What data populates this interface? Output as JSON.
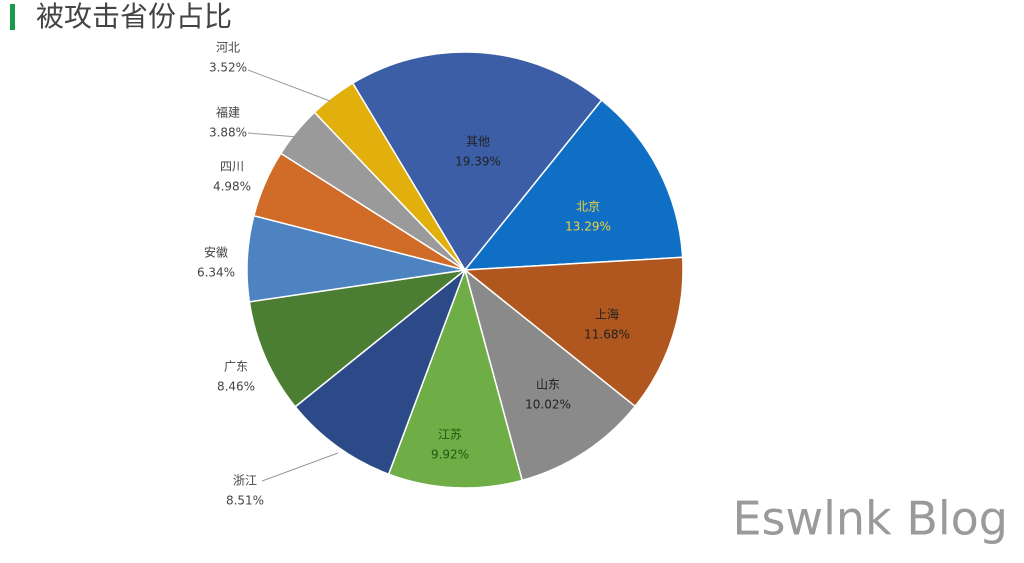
{
  "chart_data": {
    "type": "pie",
    "title": "被攻击省份占比",
    "categories": [
      "其他",
      "北京",
      "上海",
      "山东",
      "江苏",
      "浙江",
      "广东",
      "安徽",
      "四川",
      "福建",
      "河北"
    ],
    "values": [
      19.39,
      13.29,
      11.68,
      10.02,
      9.92,
      8.51,
      8.46,
      6.34,
      4.98,
      3.88,
      3.52
    ],
    "value_labels": [
      "19.39%",
      "13.29%",
      "11.68%",
      "10.02%",
      "9.92%",
      "8.51%",
      "8.46%",
      "6.34%",
      "4.98%",
      "3.88%",
      "3.52%"
    ],
    "colors": [
      "#3b5ea7",
      "#0f6fc4",
      "#b0561f",
      "#8a8a8a",
      "#6fad47",
      "#2d4a88",
      "#4b7e33",
      "#4d83c0",
      "#d06b28",
      "#9a9a9a",
      "#e1b00c"
    ]
  },
  "watermark": "Eswlnk Blog"
}
